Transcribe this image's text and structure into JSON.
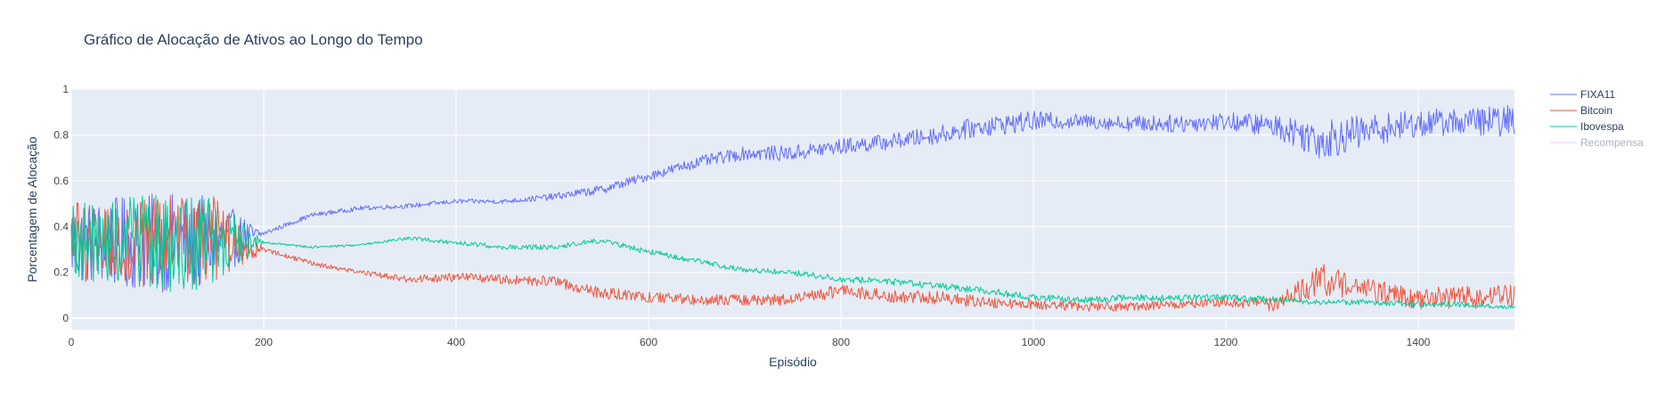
{
  "chart_data": {
    "type": "line",
    "title": "Gráfico de Alocação de Ativos ao Longo do Tempo",
    "xlabel": "Episódio",
    "ylabel": "Porcentagem de Alocação",
    "xlim": [
      0,
      1500
    ],
    "ylim": [
      -0.05,
      1.0
    ],
    "xticks": [
      0,
      200,
      400,
      600,
      800,
      1000,
      1200,
      1400
    ],
    "yticks": [
      0,
      0.2,
      0.4,
      0.6,
      0.8,
      1
    ],
    "ytick_labels": [
      "0",
      "0.2",
      "0.4",
      "0.6",
      "0.8",
      "1"
    ],
    "grid": true,
    "legend_position": "top-right",
    "background": "#e5ecf6",
    "series": [
      {
        "name": "FIXA11",
        "color": "#636efa",
        "visible": true,
        "x": [
          0,
          50,
          100,
          150,
          200,
          250,
          300,
          350,
          400,
          450,
          500,
          550,
          600,
          650,
          700,
          750,
          800,
          850,
          900,
          950,
          1000,
          1050,
          1100,
          1150,
          1200,
          1250,
          1300,
          1350,
          1400,
          1450,
          1500
        ],
        "mean": [
          0.33,
          0.33,
          0.33,
          0.33,
          0.37,
          0.45,
          0.48,
          0.49,
          0.51,
          0.51,
          0.53,
          0.56,
          0.62,
          0.68,
          0.72,
          0.72,
          0.75,
          0.77,
          0.8,
          0.84,
          0.86,
          0.86,
          0.85,
          0.85,
          0.86,
          0.84,
          0.78,
          0.82,
          0.85,
          0.86,
          0.86
        ],
        "spread": [
          0.18,
          0.2,
          0.22,
          0.2,
          0.01,
          0.01,
          0.01,
          0.01,
          0.01,
          0.01,
          0.015,
          0.02,
          0.02,
          0.025,
          0.03,
          0.035,
          0.035,
          0.035,
          0.04,
          0.045,
          0.045,
          0.03,
          0.035,
          0.04,
          0.04,
          0.05,
          0.09,
          0.07,
          0.06,
          0.06,
          0.07
        ]
      },
      {
        "name": "Bitcoin",
        "color": "#ef553b",
        "visible": true,
        "x": [
          0,
          50,
          100,
          150,
          200,
          250,
          300,
          350,
          400,
          450,
          500,
          550,
          600,
          650,
          700,
          750,
          800,
          850,
          900,
          950,
          1000,
          1050,
          1100,
          1150,
          1200,
          1250,
          1300,
          1350,
          1400,
          1450,
          1500
        ],
        "mean": [
          0.33,
          0.33,
          0.33,
          0.33,
          0.3,
          0.24,
          0.2,
          0.17,
          0.18,
          0.17,
          0.16,
          0.11,
          0.09,
          0.08,
          0.08,
          0.08,
          0.12,
          0.1,
          0.09,
          0.07,
          0.06,
          0.05,
          0.05,
          0.06,
          0.07,
          0.06,
          0.17,
          0.12,
          0.09,
          0.09,
          0.1
        ],
        "spread": [
          0.18,
          0.2,
          0.22,
          0.2,
          0.01,
          0.01,
          0.01,
          0.015,
          0.02,
          0.02,
          0.025,
          0.025,
          0.025,
          0.025,
          0.025,
          0.025,
          0.03,
          0.03,
          0.03,
          0.025,
          0.02,
          0.02,
          0.02,
          0.02,
          0.02,
          0.03,
          0.07,
          0.05,
          0.05,
          0.05,
          0.05
        ]
      },
      {
        "name": "Ibovespa",
        "color": "#00cc96",
        "visible": true,
        "x": [
          0,
          50,
          100,
          150,
          200,
          250,
          300,
          350,
          400,
          450,
          500,
          550,
          600,
          650,
          700,
          750,
          800,
          850,
          900,
          950,
          1000,
          1050,
          1100,
          1150,
          1200,
          1250,
          1300,
          1350,
          1400,
          1450,
          1500
        ],
        "mean": [
          0.33,
          0.33,
          0.33,
          0.33,
          0.33,
          0.31,
          0.32,
          0.35,
          0.33,
          0.31,
          0.31,
          0.34,
          0.29,
          0.25,
          0.21,
          0.2,
          0.17,
          0.16,
          0.14,
          0.12,
          0.09,
          0.08,
          0.09,
          0.09,
          0.09,
          0.08,
          0.07,
          0.07,
          0.06,
          0.06,
          0.05
        ],
        "spread": [
          0.18,
          0.2,
          0.22,
          0.2,
          0.005,
          0.005,
          0.005,
          0.008,
          0.01,
          0.01,
          0.012,
          0.012,
          0.012,
          0.012,
          0.012,
          0.012,
          0.015,
          0.015,
          0.015,
          0.015,
          0.015,
          0.015,
          0.015,
          0.015,
          0.015,
          0.015,
          0.012,
          0.012,
          0.012,
          0.012,
          0.01
        ]
      },
      {
        "name": "Recompensa",
        "color": "#ab63fa",
        "visible": false
      }
    ]
  }
}
